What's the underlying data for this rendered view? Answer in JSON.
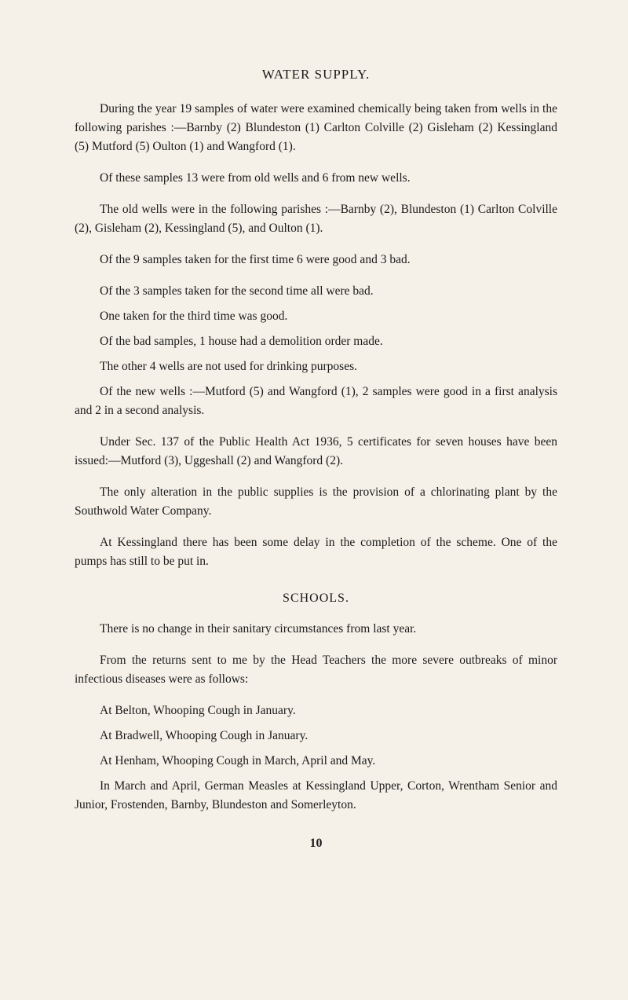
{
  "heading1": "WATER SUPPLY.",
  "p1": "During the year 19 samples of water were examined chemically being taken from wells in the following parishes :—Barnby (2) Blundeston (1) Carlton Colville (2) Gisleham (2) Kessingland (5) Mutford (5) Oulton (1) and Wangford (1).",
  "p2": "Of these samples 13 were from old wells and 6 from new wells.",
  "p3": "The old wells were in the following parishes :—Barnby (2), Blundeston (1) Carlton Colville (2), Gisleham (2), Kessingland (5), and Oulton (1).",
  "p4": "Of the 9 samples taken for the first time 6 were good and 3 bad.",
  "p5": "Of the 3 samples taken for the second time all were bad.",
  "p6": "One taken for the third time was good.",
  "p7": "Of the bad samples, 1 house had a demolition order made.",
  "p8": "The other 4 wells are not used for drinking purposes.",
  "p9": "Of the new wells :—Mutford (5) and Wangford (1), 2 samples were good in a first analysis and 2 in a second analysis.",
  "p10": "Under Sec. 137 of the Public Health Act 1936, 5 certificates for seven houses have been issued:—Mutford (3), Uggeshall (2) and Wangford (2).",
  "p11": "The only alteration in the public supplies is the provision of a chlorinating plant by the Southwold Water Company.",
  "p12": "At Kessingland there has been some delay in the completion of the scheme. One of the pumps has still to be put in.",
  "heading2": "SCHOOLS.",
  "p13": "There is no change in their sanitary circumstances from last year.",
  "p14": "From the returns sent to me by the Head Teachers the more severe outbreaks of minor infectious diseases were as follows:",
  "p15": "At Belton, Whooping Cough in January.",
  "p16": "At Bradwell, Whooping Cough in January.",
  "p17": "At Henham, Whooping Cough in March, April and May.",
  "p18": "In March and April, German Measles at Kessingland Upper, Corton, Wrentham Senior and Junior, Frostenden, Barnby, Blun­deston and Somerleyton.",
  "pageNumber": "10"
}
